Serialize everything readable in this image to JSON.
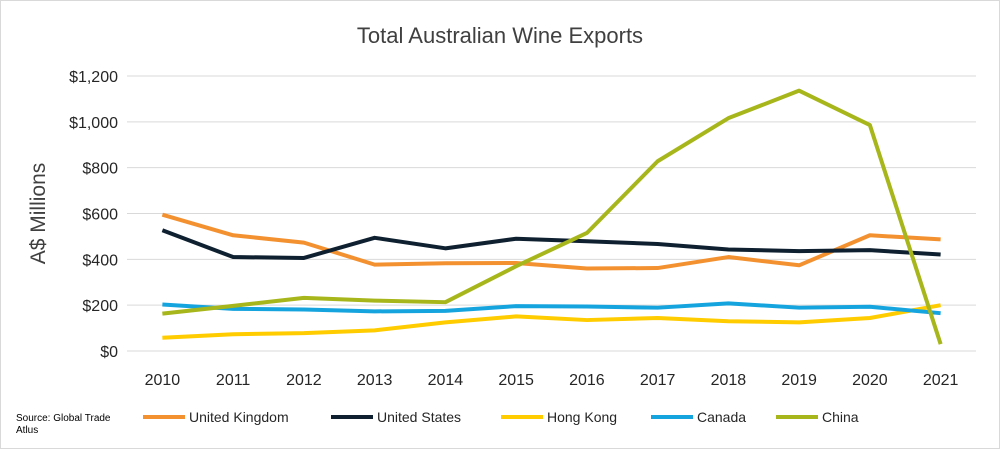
{
  "source_note": "Source: Global Trade Atlus",
  "chart_data": {
    "type": "line",
    "title": "Total Australian Wine Exports",
    "xlabel": "",
    "ylabel": "A$ Millions",
    "ylim": [
      0,
      1200
    ],
    "y_ticks": [
      0,
      200,
      400,
      600,
      800,
      1000,
      1200
    ],
    "y_tick_labels": [
      "$0",
      "$200",
      "$400",
      "$600",
      "$800",
      "$1,000",
      "$1,200"
    ],
    "grid": true,
    "legend_position": "bottom",
    "categories": [
      "2010",
      "2011",
      "2012",
      "2013",
      "2014",
      "2015",
      "2016",
      "2017",
      "2018",
      "2019",
      "2020",
      "2021"
    ],
    "series": [
      {
        "name": "United Kingdom",
        "color": "#F39130",
        "values": [
          595,
          505,
          473,
          377,
          383,
          384,
          360,
          362,
          410,
          374,
          505,
          487
        ]
      },
      {
        "name": "United States",
        "color": "#0F2131",
        "values": [
          527,
          410,
          406,
          494,
          448,
          490,
          479,
          467,
          443,
          436,
          440,
          421
        ]
      },
      {
        "name": "Hong Kong",
        "color": "#FFCC00",
        "values": [
          58,
          73,
          78,
          90,
          125,
          151,
          135,
          144,
          130,
          125,
          144,
          200
        ]
      },
      {
        "name": "Canada",
        "color": "#16A4DE",
        "values": [
          203,
          184,
          181,
          173,
          175,
          196,
          194,
          189,
          208,
          189,
          193,
          165
        ]
      },
      {
        "name": "China",
        "color": "#A7B61A",
        "values": [
          163,
          197,
          232,
          220,
          213,
          370,
          515,
          828,
          1016,
          1136,
          986,
          30
        ]
      }
    ]
  }
}
